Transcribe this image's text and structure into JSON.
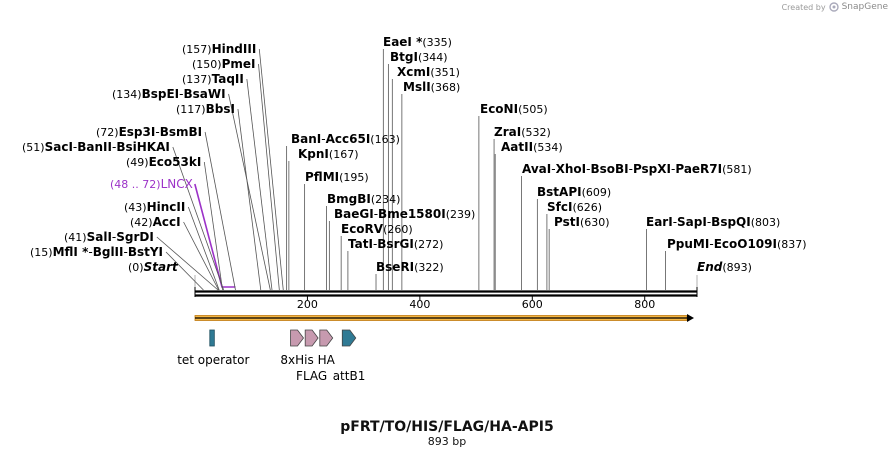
{
  "credit": {
    "prefix": "Created by",
    "brand": "SnapGene"
  },
  "plasmid": {
    "name": "pFRT/TO/HIS/FLAG/HA-API5",
    "length_label": "893 bp",
    "length": 893
  },
  "axis": {
    "ticks": [
      200,
      400,
      600,
      800
    ]
  },
  "colors": {
    "line": "#000000",
    "site_line": "#b0b0b0",
    "lncx": "#9c32c8",
    "arrow_fill": "#f4b642",
    "operator": "#2f7a94",
    "tag": "#c79aaf"
  },
  "sites": [
    {
      "pos": "(0)",
      "names": [
        "Start"
      ],
      "italic": true,
      "bp": 0
    },
    {
      "pos": "(15)",
      "names": [
        "MflI *",
        "BglII",
        "BstYI"
      ],
      "bp": 15
    },
    {
      "pos": "(41)",
      "names": [
        "SalI",
        "SgrDI"
      ],
      "bp": 41
    },
    {
      "pos": "(42)",
      "names": [
        "AccI"
      ],
      "bp": 42
    },
    {
      "pos": "(43)",
      "names": [
        "HincII"
      ],
      "bp": 43
    },
    {
      "pos": "(48 .. 72)",
      "names": [
        "LNCX"
      ],
      "feature": true,
      "bp": 48
    },
    {
      "pos": "(49)",
      "names": [
        "Eco53kI"
      ],
      "bp": 49
    },
    {
      "pos": "(51)",
      "names": [
        "SacI",
        "BanII",
        "BsiHKAI"
      ],
      "bp": 51
    },
    {
      "pos": "(72)",
      "names": [
        "Esp3I",
        "BsmBI"
      ],
      "bp": 72
    },
    {
      "pos": "(117)",
      "names": [
        "BbsI"
      ],
      "bp": 117
    },
    {
      "pos": "(134)",
      "names": [
        "BspEI",
        "BsaWI"
      ],
      "bp": 134
    },
    {
      "pos": "(137)",
      "names": [
        "TaqII"
      ],
      "bp": 137
    },
    {
      "pos": "(150)",
      "names": [
        "PmeI"
      ],
      "bp": 150
    },
    {
      "pos": "(157)",
      "names": [
        "HindIII"
      ],
      "bp": 157
    },
    {
      "pos": "(163)",
      "names": [
        "BanI",
        "Acc65I"
      ],
      "bp": 163
    },
    {
      "pos": "(167)",
      "names": [
        "KpnI"
      ],
      "bp": 167
    },
    {
      "pos": "(195)",
      "names": [
        "PflMI"
      ],
      "bp": 195
    },
    {
      "pos": "(234)",
      "names": [
        "BmgBI"
      ],
      "bp": 234
    },
    {
      "pos": "(239)",
      "names": [
        "BaeGI",
        "Bme1580I"
      ],
      "bp": 239
    },
    {
      "pos": "(260)",
      "names": [
        "EcoRV"
      ],
      "bp": 260
    },
    {
      "pos": "(272)",
      "names": [
        "TatI",
        "BsrGI"
      ],
      "bp": 272
    },
    {
      "pos": "(322)",
      "names": [
        "BseRI"
      ],
      "bp": 322
    },
    {
      "pos": "(335)",
      "names": [
        "EaeI *"
      ],
      "bp": 335
    },
    {
      "pos": "(344)",
      "names": [
        "BtgI"
      ],
      "bp": 344
    },
    {
      "pos": "(351)",
      "names": [
        "XcmI"
      ],
      "bp": 351
    },
    {
      "pos": "(368)",
      "names": [
        "MslI"
      ],
      "bp": 368
    },
    {
      "pos": "(505)",
      "names": [
        "EcoNI"
      ],
      "bp": 505
    },
    {
      "pos": "(532)",
      "names": [
        "ZraI"
      ],
      "bp": 532
    },
    {
      "pos": "(534)",
      "names": [
        "AatII"
      ],
      "bp": 534
    },
    {
      "pos": "(581)",
      "names": [
        "AvaI",
        "XhoI",
        "BsoBI",
        "PspXI",
        "PaeR7I"
      ],
      "bp": 581
    },
    {
      "pos": "(609)",
      "names": [
        "BstAPI"
      ],
      "bp": 609
    },
    {
      "pos": "(626)",
      "names": [
        "SfcI"
      ],
      "bp": 626
    },
    {
      "pos": "(630)",
      "names": [
        "PstI"
      ],
      "bp": 630
    },
    {
      "pos": "(803)",
      "names": [
        "EarI",
        "SapI",
        "BspQI"
      ],
      "bp": 803
    },
    {
      "pos": "(837)",
      "names": [
        "PpuMI",
        "EcoO109I"
      ],
      "bp": 837
    },
    {
      "pos": "(893)",
      "names": [
        "End"
      ],
      "italic": true,
      "bp": 893
    }
  ],
  "features": [
    {
      "name": "tet operator",
      "type": "operator",
      "start": 20,
      "end": 38,
      "row": "top"
    },
    {
      "name": "8xHis",
      "type": "tag",
      "start": 170,
      "end": 193,
      "row": "top"
    },
    {
      "name": "FLAG",
      "type": "tag",
      "start": 196,
      "end": 219,
      "row": "bottom"
    },
    {
      "name": "HA",
      "type": "tag",
      "start": 222,
      "end": 245,
      "row": "top"
    },
    {
      "name": "attB1",
      "type": "attb",
      "start": 262,
      "end": 286,
      "row": "bottom"
    }
  ]
}
